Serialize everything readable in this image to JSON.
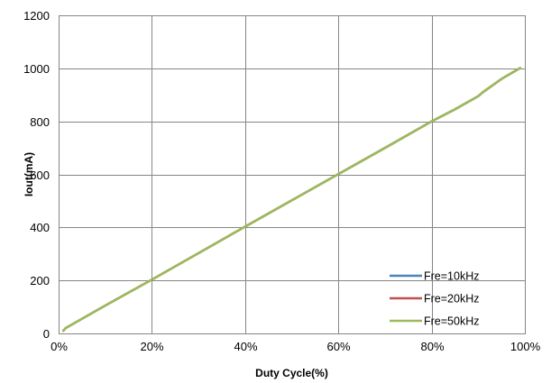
{
  "chart_data": {
    "type": "line",
    "title": "",
    "xlabel": "Duty Cycle(%)",
    "ylabel": "Iout(mA)",
    "xlim": [
      0,
      100
    ],
    "ylim": [
      0,
      1200
    ],
    "x_ticks": [
      0,
      20,
      40,
      60,
      80,
      100
    ],
    "x_tick_labels": [
      "0%",
      "20%",
      "40%",
      "60%",
      "80%",
      "100%"
    ],
    "y_ticks": [
      0,
      200,
      400,
      600,
      800,
      1000,
      1200
    ],
    "y_tick_labels": [
      "0",
      "200",
      "400",
      "600",
      "800",
      "1000",
      "1200"
    ],
    "grid": true,
    "legend_position": "bottom-right",
    "series": [
      {
        "name": "Fre=10kHz",
        "color": "#4F81BD",
        "x": [
          1,
          1.5,
          10,
          20,
          30,
          40,
          50,
          60,
          70,
          80,
          85,
          89,
          90,
          91,
          95,
          99
        ],
        "y": [
          10,
          20,
          105,
          203,
          303,
          403,
          502,
          601,
          700,
          800,
          845,
          885,
          895,
          910,
          960,
          1001
        ]
      },
      {
        "name": "Fre=20kHz",
        "color": "#C0504D",
        "x": [
          1,
          1.5,
          10,
          20,
          30,
          40,
          50,
          60,
          70,
          80,
          85,
          89,
          90,
          91,
          95,
          99
        ],
        "y": [
          10,
          20,
          105,
          203,
          303,
          403,
          502,
          601,
          700,
          800,
          845,
          885,
          895,
          910,
          960,
          1001
        ]
      },
      {
        "name": "Fre=50kHz",
        "color": "#9BBB59",
        "x": [
          1,
          1.5,
          10,
          20,
          30,
          40,
          50,
          60,
          70,
          80,
          85,
          89,
          90,
          91,
          95,
          99
        ],
        "y": [
          10,
          20,
          105,
          203,
          303,
          403,
          502,
          601,
          700,
          800,
          845,
          885,
          895,
          910,
          960,
          1001
        ]
      }
    ]
  }
}
